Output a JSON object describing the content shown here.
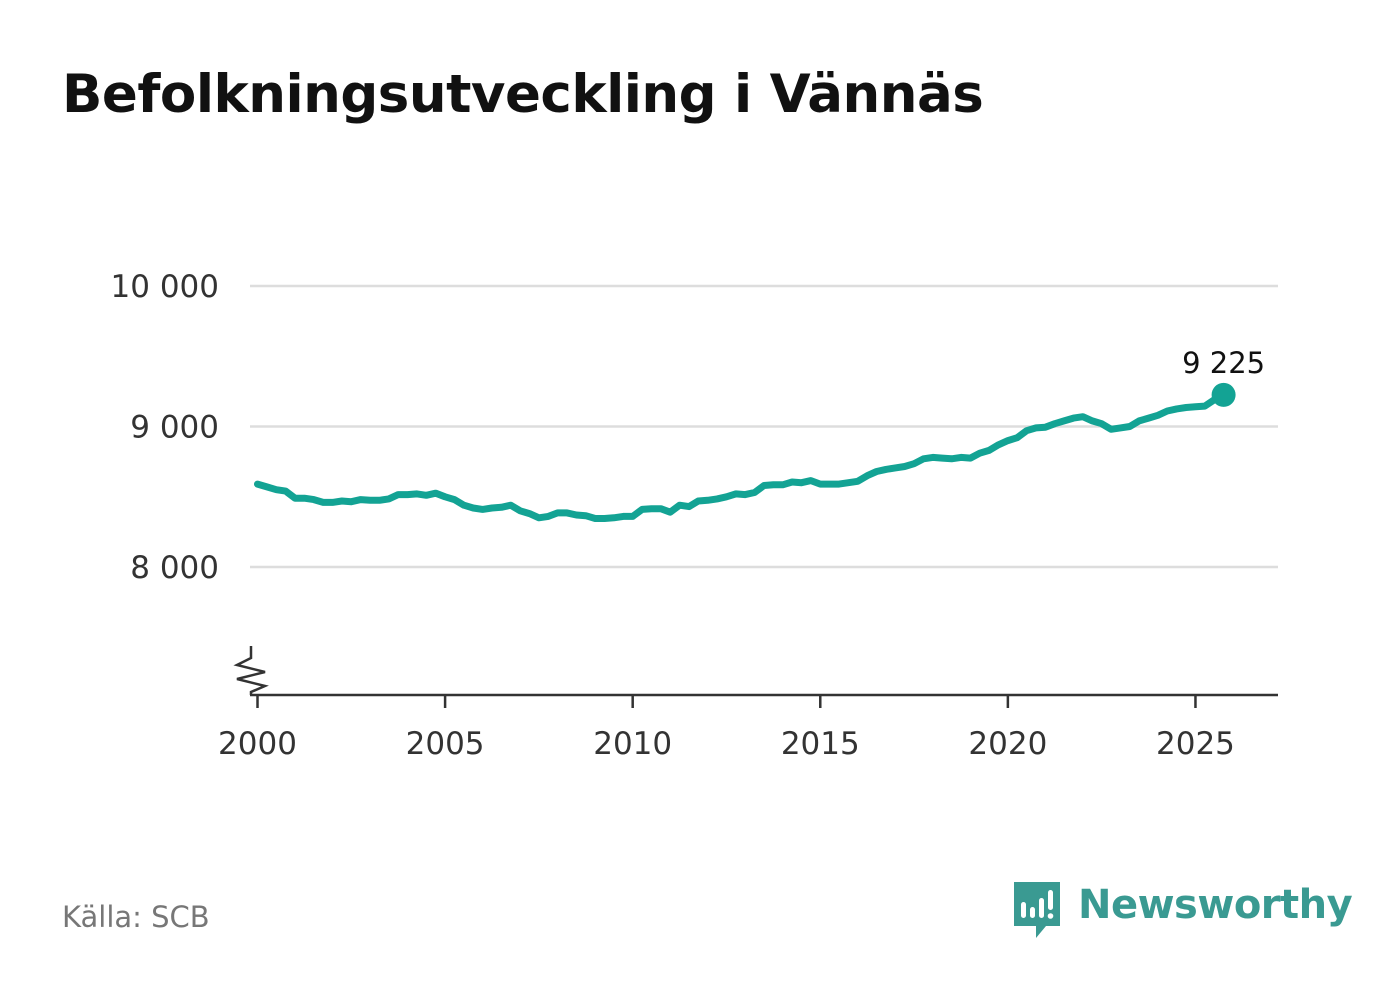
{
  "title": "Befolkningsutveckling i Vännäs",
  "source": "Källa: SCB",
  "brand": {
    "name": "Newsworthy",
    "color": "#3a9a92",
    "icon": "bar-chart-speech-bubble-icon"
  },
  "colors": {
    "line": "#13a394",
    "grid": "#dddddd",
    "axis": "#333333"
  },
  "chart_data": {
    "type": "line",
    "title": "Befolkningsutveckling i Vännäs",
    "xlabel": "",
    "ylabel": "",
    "xlim": [
      1999.8,
      2027.2
    ],
    "ylim": [
      7100,
      10000
    ],
    "y_axis_break": true,
    "grid": "horizontal",
    "legend": "none",
    "x_ticks": [
      2000,
      2005,
      2010,
      2015,
      2020,
      2025
    ],
    "x_tick_labels": [
      "2000",
      "2005",
      "2010",
      "2015",
      "2020",
      "2025"
    ],
    "y_ticks": [
      8000,
      9000,
      10000
    ],
    "y_tick_labels": [
      "8 000",
      "9 000",
      "10 000"
    ],
    "end_label": "9 225",
    "series": [
      {
        "x": [
          2000.0,
          2000.25,
          2000.5,
          2000.75,
          2001.0,
          2001.25,
          2001.5,
          2001.75,
          2002.0,
          2002.25,
          2002.5,
          2002.75,
          2003.0,
          2003.25,
          2003.5,
          2003.75,
          2004.0,
          2004.25,
          2004.5,
          2004.75,
          2005.0,
          2005.25,
          2005.5,
          2005.75,
          2006.0,
          2006.25,
          2006.5,
          2006.75,
          2007.0,
          2007.25,
          2007.5,
          2007.75,
          2008.0,
          2008.25,
          2008.5,
          2008.75,
          2009.0,
          2009.25,
          2009.5,
          2009.75,
          2010.0,
          2010.25,
          2010.5,
          2010.75,
          2011.0,
          2011.25,
          2011.5,
          2011.75,
          2012.0,
          2012.25,
          2012.5,
          2012.75,
          2013.0,
          2013.25,
          2013.5,
          2013.75,
          2014.0,
          2014.25,
          2014.5,
          2014.75,
          2015.0,
          2015.25,
          2015.5,
          2015.75,
          2016.0,
          2016.25,
          2016.5,
          2016.75,
          2017.0,
          2017.25,
          2017.5,
          2017.75,
          2018.0,
          2018.25,
          2018.5,
          2018.75,
          2019.0,
          2019.25,
          2019.5,
          2019.75,
          2020.0,
          2020.25,
          2020.5,
          2020.75,
          2021.0,
          2021.25,
          2021.5,
          2021.75,
          2022.0,
          2022.25,
          2022.5,
          2022.75,
          2023.0,
          2023.25,
          2023.5,
          2023.75,
          2024.0,
          2024.25,
          2024.5,
          2024.75,
          2025.0,
          2025.25,
          2025.5,
          2025.75
        ],
        "values": [
          8590,
          8570,
          8550,
          8540,
          8490,
          8490,
          8480,
          8460,
          8460,
          8470,
          8465,
          8480,
          8475,
          8475,
          8485,
          8515,
          8515,
          8520,
          8510,
          8525,
          8500,
          8480,
          8440,
          8420,
          8410,
          8420,
          8425,
          8440,
          8400,
          8380,
          8350,
          8360,
          8385,
          8385,
          8370,
          8365,
          8345,
          8345,
          8350,
          8360,
          8360,
          8410,
          8415,
          8415,
          8390,
          8440,
          8430,
          8470,
          8475,
          8485,
          8500,
          8520,
          8515,
          8530,
          8580,
          8585,
          8585,
          8605,
          8600,
          8615,
          8590,
          8590,
          8590,
          8600,
          8610,
          8650,
          8680,
          8695,
          8705,
          8715,
          8735,
          8770,
          8780,
          8775,
          8770,
          8780,
          8775,
          8810,
          8830,
          8870,
          8900,
          8920,
          8970,
          8990,
          8995,
          9020,
          9040,
          9060,
          9070,
          9040,
          9020,
          8980,
          8990,
          9000,
          9040,
          9060,
          9080,
          9110,
          9125,
          9135,
          9140,
          9145,
          9190,
          9225
        ]
      }
    ]
  }
}
